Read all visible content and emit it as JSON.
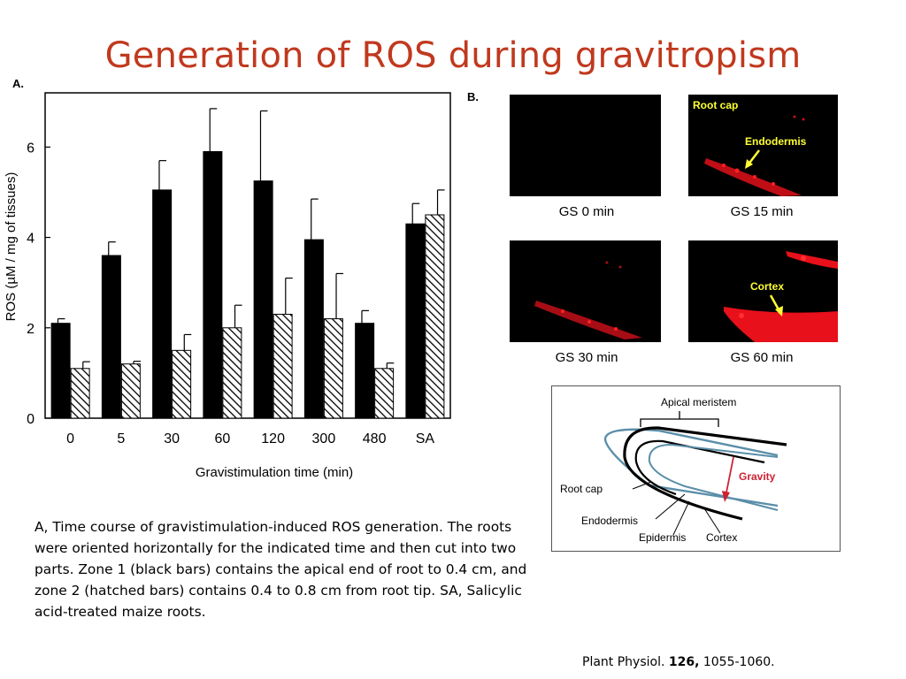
{
  "slide": {
    "title": "Generation of ROS during gravitropism",
    "caption": "A, Time course of gravistimulation-induced ROS generation. The roots were oriented horizontally for the indicated time and then cut into two parts. Zone 1 (black bars) contains the apical end of root to 0.4 cm, and zone 2 (hatched bars) contains 0.4 to 0.8 cm from root tip. SA, Salicylic acid-treated maize roots.",
    "citation": {
      "journal": "Plant Physiol. ",
      "volume": "126,",
      "pages": " 1055-1060."
    }
  },
  "panel_a": {
    "label": "A."
  },
  "panel_b": {
    "label": "B.",
    "images": [
      {
        "caption": "GS 0 min",
        "annotations": []
      },
      {
        "caption": "GS 15 min",
        "annotations": [
          "Root cap",
          "Endodermis"
        ]
      },
      {
        "caption": "GS 30 min",
        "annotations": []
      },
      {
        "caption": "GS 60 min",
        "annotations": [
          "Cortex"
        ]
      }
    ],
    "diagram": {
      "labels": {
        "apical_meristem": "Apical meristem",
        "root_cap": "Root cap",
        "endodermis": "Endodermis",
        "epidermis": "Epidermis",
        "cortex": "Cortex",
        "gravity": "Gravity"
      },
      "gravity_color": "#cc2233"
    }
  },
  "chart_data": {
    "type": "bar",
    "categories": [
      "0",
      "5",
      "30",
      "60",
      "120",
      "300",
      "480",
      "SA"
    ],
    "series": [
      {
        "values": [
          2.1,
          3.6,
          5.05,
          5.9,
          5.25,
          3.95,
          2.1,
          4.3
        ],
        "errors": [
          0.1,
          0.3,
          0.65,
          0.95,
          1.55,
          0.9,
          0.28,
          0.45
        ],
        "fill": "solid-black"
      },
      {
        "values": [
          1.1,
          1.2,
          1.5,
          2.0,
          2.3,
          2.2,
          1.1,
          4.5
        ],
        "errors": [
          0.15,
          0.06,
          0.35,
          0.5,
          0.8,
          1.0,
          0.12,
          0.55
        ],
        "fill": "hatched"
      }
    ],
    "xlabel": "Gravistimulation time (min)",
    "ylabel": "ROS (µM / mg of tissues)",
    "ylim": [
      0,
      7.2
    ],
    "yticks": [
      0,
      2,
      4,
      6
    ]
  }
}
